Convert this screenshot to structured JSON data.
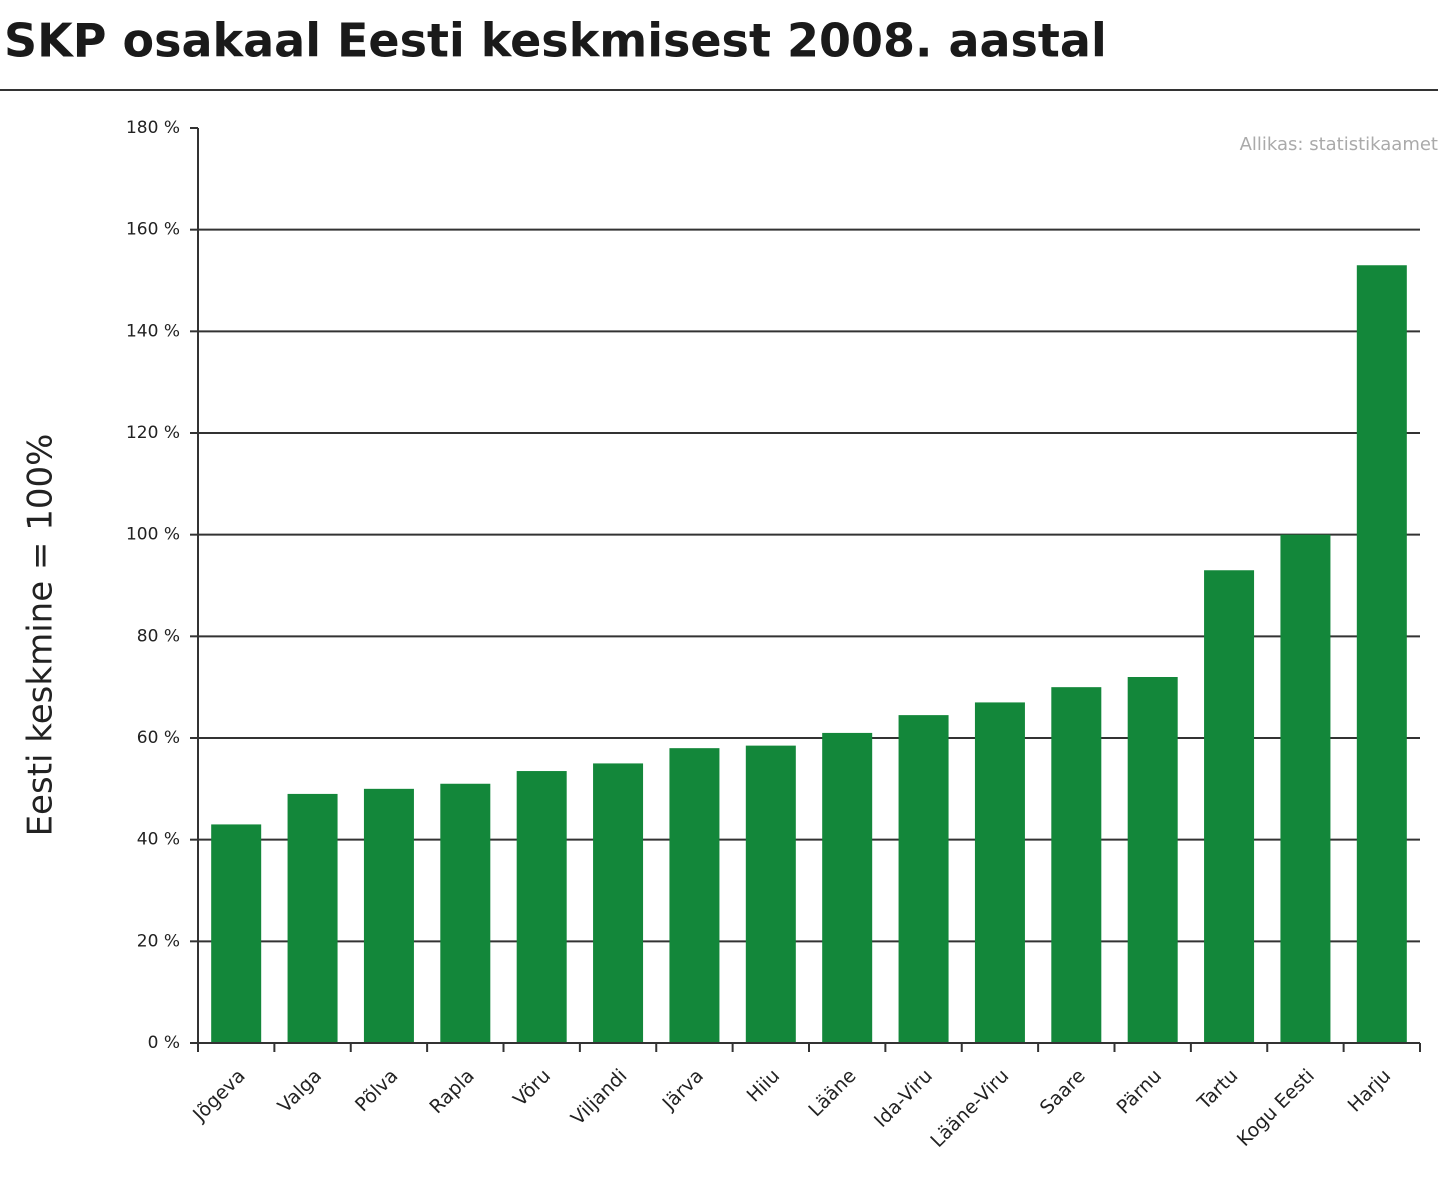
{
  "chart_data": {
    "type": "bar",
    "title": "SKP osakaal Eesti keskmisest 2008. aastal",
    "source": "Allikas: statistikaamet",
    "y_label": "Eesti keskmine = 100%",
    "categories": [
      "Jõgeva",
      "Valga",
      "Põlva",
      "Rapla",
      "Võru",
      "Viljandi",
      "Järva",
      "Hiiu",
      "Lääne",
      "Ida-Viru",
      "Lääne-Viru",
      "Saare",
      "Pärnu",
      "Tartu",
      "Kogu Eesti",
      "Harju"
    ],
    "values": [
      43,
      49,
      50,
      51,
      53.5,
      55,
      58,
      58.5,
      61,
      64.5,
      67,
      70,
      72,
      93,
      100,
      153
    ],
    "color": "#13873a",
    "ylim": [
      0,
      180
    ],
    "yticks": [
      {
        "value": 0,
        "label": "0 %"
      },
      {
        "value": 20,
        "label": "20 %"
      },
      {
        "value": 40,
        "label": "40 %"
      },
      {
        "value": 60,
        "label": "60 %"
      },
      {
        "value": 80,
        "label": "80 %"
      },
      {
        "value": 100,
        "label": "100 %"
      },
      {
        "value": 120,
        "label": "120 %"
      },
      {
        "value": 140,
        "label": "140 %"
      },
      {
        "value": 160,
        "label": "160 %"
      },
      {
        "value": 180,
        "label": "180 %"
      }
    ],
    "grid": true
  }
}
